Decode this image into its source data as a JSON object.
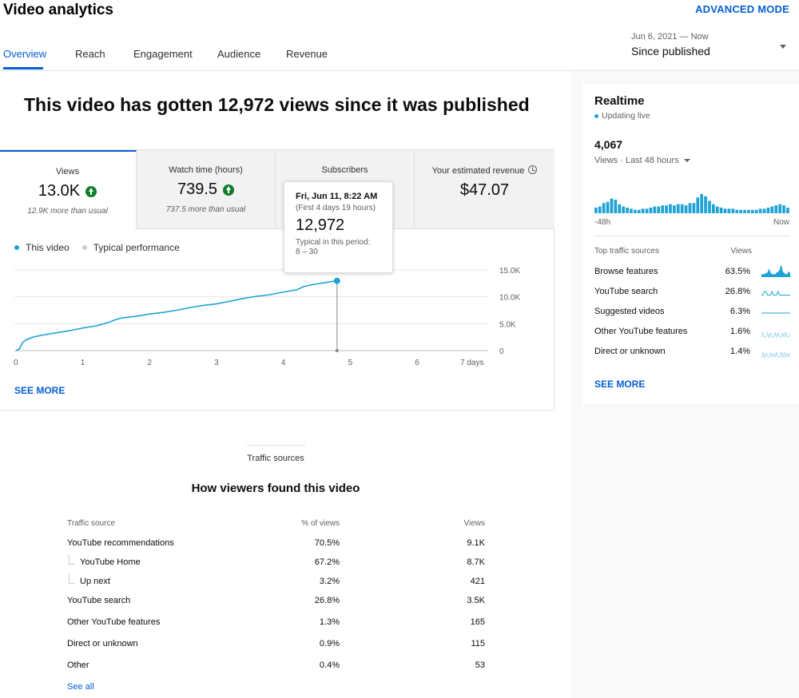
{
  "header": {
    "title": "Video analytics",
    "advanced_mode": "ADVANCED MODE",
    "tabs": [
      "Overview",
      "Reach",
      "Engagement",
      "Audience",
      "Revenue"
    ],
    "active_tab": "Overview",
    "date_range_sub": "Jun 6, 2021 — Now",
    "date_range_main": "Since published"
  },
  "headline": "This video has gotten 12,972 views since it was published",
  "metrics": [
    {
      "label": "Views",
      "value": "13.0K",
      "note": "12.9K more than usual",
      "trend_icon": "up-arrow-icon"
    },
    {
      "label": "Watch time (hours)",
      "value": "739.5",
      "note": "737.5 more than usual",
      "trend_icon": "up-arrow-icon"
    },
    {
      "label": "Subscribers",
      "value": "",
      "note": ""
    },
    {
      "label": "Your estimated revenue",
      "value": "$47.07",
      "note": "",
      "info_icon": "clock-icon"
    }
  ],
  "legend": {
    "this_video": "This video",
    "typical": "Typical performance"
  },
  "colors": {
    "accent": "#065fd4",
    "series": "#1fa3d6",
    "typical": "#cccccc",
    "positive": "#0f7d2c"
  },
  "tooltip": {
    "date": "Fri, Jun 11, 8:22 AM",
    "period": "(First 4 days 19 hours)",
    "value": "12,972",
    "typical_label": "Typical in this period:",
    "typical_range": "8 – 30"
  },
  "chart_data": {
    "type": "line",
    "xlabel": "",
    "ylabel": "",
    "x_ticks": [
      "0",
      "1",
      "2",
      "3",
      "4",
      "5",
      "6",
      "7 days"
    ],
    "y_ticks": [
      "0",
      "5.0K",
      "10.0K",
      "15.0K"
    ],
    "xlim": [
      0,
      7
    ],
    "ylim": [
      0,
      15000
    ],
    "series": [
      {
        "name": "This video",
        "x": [
          0,
          0.05,
          0.1,
          0.15,
          0.25,
          0.4,
          0.6,
          0.8,
          1.0,
          1.2,
          1.4,
          1.5,
          1.6,
          1.8,
          2.0,
          2.2,
          2.4,
          2.6,
          2.8,
          3.0,
          3.2,
          3.4,
          3.6,
          3.8,
          4.0,
          4.2,
          4.3,
          4.4,
          4.5,
          4.6,
          4.7,
          4.8
        ],
        "y": [
          0,
          300,
          1500,
          2000,
          2500,
          2900,
          3300,
          3700,
          4200,
          4600,
          5300,
          5800,
          6100,
          6400,
          6800,
          7100,
          7500,
          8000,
          8400,
          8700,
          9200,
          9700,
          10100,
          10400,
          10900,
          11300,
          11900,
          12200,
          12400,
          12600,
          12800,
          12972
        ]
      }
    ],
    "highlight": {
      "x": 4.8,
      "y": 12972
    }
  },
  "see_more": "SEE MORE",
  "traffic": {
    "section_label": "Traffic sources",
    "heading": "How viewers found this video",
    "columns": [
      "Traffic source",
      "% of views",
      "Views"
    ],
    "rows": [
      {
        "source": "YouTube recommendations",
        "pct": "70.5%",
        "views": "9.1K",
        "child": false
      },
      {
        "source": "YouTube Home",
        "pct": "67.2%",
        "views": "8.7K",
        "child": true
      },
      {
        "source": "Up next",
        "pct": "3.2%",
        "views": "421",
        "child": true
      },
      {
        "source": "YouTube search",
        "pct": "26.8%",
        "views": "3.5K",
        "child": false
      },
      {
        "source": "Other YouTube features",
        "pct": "1.3%",
        "views": "165",
        "child": false
      },
      {
        "source": "Direct or unknown",
        "pct": "0.9%",
        "views": "115",
        "child": false
      },
      {
        "source": "Other",
        "pct": "0.4%",
        "views": "53",
        "child": false
      }
    ],
    "see_all": "See all"
  },
  "realtime": {
    "title": "Realtime",
    "status": "Updating live",
    "value": "4,067",
    "subtitle": "Views · Last 48 hours",
    "axis_left": "-48h",
    "axis_right": "Now",
    "bars": [
      5,
      6,
      9,
      10,
      13,
      12,
      8,
      6,
      5,
      4,
      3,
      3,
      4,
      4,
      5,
      6,
      6,
      7,
      7,
      8,
      7,
      8,
      8,
      7,
      9,
      9,
      14,
      17,
      15,
      11,
      8,
      6,
      5,
      4,
      4,
      4,
      3,
      3,
      3,
      3,
      3,
      3,
      4,
      4,
      5,
      6,
      7,
      8,
      7,
      5
    ],
    "sources_header": [
      "Top traffic sources",
      "Views"
    ],
    "sources": [
      {
        "name": "Browse features",
        "pct": "63.5%",
        "spark": [
          2,
          2,
          2,
          3,
          3,
          6,
          3,
          2,
          2,
          2,
          3,
          4,
          5,
          9,
          4,
          3,
          2,
          2,
          4,
          3
        ]
      },
      {
        "name": "YouTube search",
        "pct": "26.8%",
        "spark": [
          1,
          1,
          2,
          2,
          1,
          1,
          1,
          2,
          1,
          1,
          1,
          2,
          1,
          1,
          1,
          1,
          1,
          1,
          1,
          1
        ]
      },
      {
        "name": "Suggested videos",
        "pct": "6.3%",
        "spark": [
          1,
          1,
          1,
          1,
          1,
          1,
          1,
          1,
          1,
          1,
          1,
          1,
          1,
          1,
          1,
          1,
          1,
          1,
          1,
          1
        ]
      },
      {
        "name": "Other YouTube features",
        "pct": "1.6%",
        "spark": [
          0,
          1,
          0,
          0,
          1,
          0,
          1,
          0,
          0,
          1,
          0,
          1,
          0,
          0,
          1,
          0,
          1,
          0,
          0,
          1
        ]
      },
      {
        "name": "Direct or unknown",
        "pct": "1.4%",
        "spark": [
          0,
          1,
          0,
          1,
          0,
          0,
          1,
          0,
          1,
          0,
          1,
          0,
          0,
          1,
          0,
          1,
          0,
          1,
          0,
          1
        ]
      }
    ],
    "see_more": "SEE MORE"
  }
}
